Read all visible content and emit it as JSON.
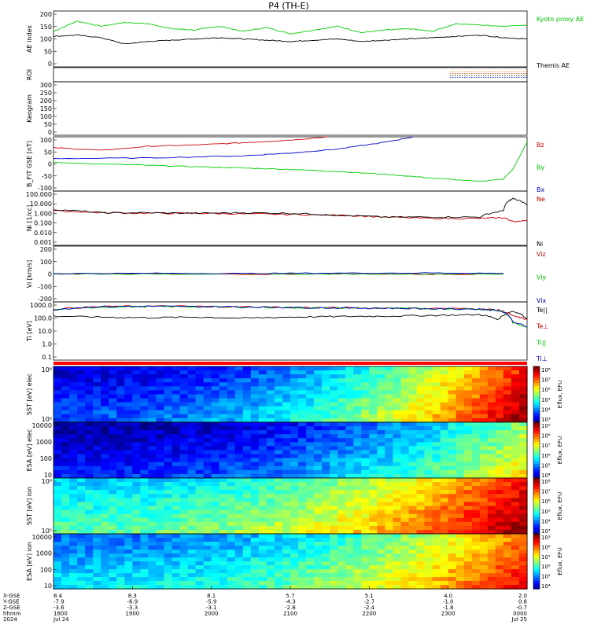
{
  "chart_data": {
    "type": "line",
    "title": "P4 (TH-E)",
    "panels": [
      {
        "id": "ae",
        "ylabel": "AE index",
        "ticks": [
          "200",
          "150",
          "100",
          "50",
          "0"
        ],
        "ylim": [
          -20,
          200
        ],
        "series": [
          {
            "name": "Kyoto proxy AE",
            "color": "#00cc00",
            "x": [
              0,
              0.05,
              0.1,
              0.15,
              0.2,
              0.25,
              0.3,
              0.35,
              0.4,
              0.45,
              0.5,
              0.55,
              0.6,
              0.65,
              0.7,
              0.75,
              0.8,
              0.85,
              0.9,
              0.95,
              1.0
            ],
            "y": [
              120,
              160,
              140,
              155,
              150,
              130,
              125,
              140,
              120,
              135,
              110,
              125,
              140,
              115,
              125,
              130,
              120,
              150,
              145,
              140,
              145
            ]
          },
          {
            "name": "Themis AE",
            "color": "#000000",
            "x": [
              0,
              0.05,
              0.1,
              0.15,
              0.2,
              0.25,
              0.3,
              0.35,
              0.4,
              0.45,
              0.5,
              0.55,
              0.6,
              0.65,
              0.7,
              0.75,
              0.8,
              0.85,
              0.9,
              0.95,
              1.0
            ],
            "y": [
              100,
              105,
              95,
              70,
              80,
              85,
              90,
              95,
              90,
              85,
              80,
              85,
              90,
              80,
              85,
              90,
              95,
              100,
              105,
              95,
              90
            ]
          }
        ]
      },
      {
        "id": "roi",
        "ylabel": "ROI",
        "ticks": [],
        "note_lines": [
          "#ff8800",
          "#ff4400",
          "#000000",
          "#0000cc"
        ]
      },
      {
        "id": "keogram",
        "ylabel": "Keogram",
        "ticks": [
          "300",
          "250",
          "200",
          "150",
          "100",
          "50",
          "0"
        ],
        "ylim": [
          0,
          300
        ]
      },
      {
        "id": "bfield",
        "ylabel": "B_FIT GSE [nT]",
        "ticks": [
          "100",
          "50",
          "0",
          "-50",
          "-100"
        ],
        "ylim": [
          -100,
          100
        ],
        "series": [
          {
            "name": "Bz",
            "color": "#cc0000",
            "x": [
              0,
              0.1,
              0.2,
              0.3,
              0.4,
              0.5,
              0.58
            ],
            "y": [
              60,
              50,
              65,
              70,
              78,
              88,
              100
            ]
          },
          {
            "name": "By",
            "color": "#00cc00",
            "x": [
              0,
              0.1,
              0.2,
              0.3,
              0.4,
              0.5,
              0.6,
              0.7,
              0.8,
              0.9,
              0.95,
              0.97,
              1.0
            ],
            "y": [
              5,
              0,
              -5,
              -10,
              -15,
              -20,
              -28,
              -38,
              -52,
              -65,
              -55,
              -20,
              80
            ]
          },
          {
            "name": "Bx",
            "color": "#0000cc",
            "x": [
              0,
              0.2,
              0.4,
              0.5,
              0.6,
              0.7,
              0.76
            ],
            "y": [
              20,
              22,
              30,
              40,
              55,
              80,
              100
            ]
          }
        ]
      },
      {
        "id": "density",
        "ylabel": "Ni [1/cc]",
        "ticks": [
          "100.000",
          "10.000",
          "1.000",
          "0.100",
          "0.010",
          "0.001"
        ],
        "log": true,
        "ylim": [
          0.001,
          100
        ],
        "series": [
          {
            "name": "Ne",
            "color": "#cc0000",
            "x": [
              0,
              0.1,
              0.2,
              0.3,
              0.4,
              0.5,
              0.6,
              0.7,
              0.8,
              0.9,
              0.95,
              0.97,
              1.0
            ],
            "y": [
              1.5,
              1.0,
              0.9,
              0.9,
              0.8,
              0.7,
              0.6,
              0.4,
              0.3,
              0.3,
              0.35,
              0.15,
              0.2
            ]
          },
          {
            "name": "Ni",
            "color": "#000000",
            "x": [
              0,
              0.1,
              0.2,
              0.3,
              0.4,
              0.5,
              0.6,
              0.7,
              0.8,
              0.9,
              0.95,
              0.97,
              1.0
            ],
            "y": [
              2,
              1.0,
              1.0,
              0.9,
              1.0,
              0.9,
              0.6,
              0.4,
              0.4,
              0.4,
              1.5,
              20,
              5
            ]
          }
        ]
      },
      {
        "id": "velocity",
        "ylabel": "Vi [km/s]",
        "ticks": [
          "200",
          "100",
          "0",
          "-100",
          "-200"
        ],
        "ylim": [
          -300,
          300
        ],
        "series": [
          {
            "name": "Viz",
            "color": "#cc0000",
            "x": [
              0,
              0.2,
              0.4,
              0.6,
              0.8,
              0.95
            ],
            "y": [
              0,
              5,
              -5,
              3,
              -3,
              0
            ]
          },
          {
            "name": "Viy",
            "color": "#00cc00",
            "x": [
              0,
              0.2,
              0.4,
              0.6,
              0.8,
              0.95
            ],
            "y": [
              2,
              0,
              2,
              0,
              2,
              0
            ]
          },
          {
            "name": "Vix",
            "color": "#0000cc",
            "x": [
              0,
              0.2,
              0.4,
              0.6,
              0.8,
              0.95
            ],
            "y": [
              5,
              8,
              6,
              10,
              12,
              8
            ]
          }
        ]
      },
      {
        "id": "temp",
        "ylabel": "Ti [eV]",
        "ticks": [
          "1000.0",
          "100.0",
          "10.0",
          "1.0",
          "0.1"
        ],
        "log": true,
        "ylim": [
          0.05,
          5000
        ],
        "series": [
          {
            "name": "Te||",
            "color": "#000000",
            "x": [
              0,
              0.1,
              0.2,
              0.3,
              0.4,
              0.5,
              0.6,
              0.7,
              0.8,
              0.9,
              0.94,
              0.97,
              1.0
            ],
            "y": [
              300,
              250,
              220,
              250,
              200,
              250,
              280,
              300,
              350,
              400,
              150,
              800,
              150
            ]
          },
          {
            "name": "Te⊥",
            "color": "#cc0000",
            "x": [
              0,
              0.1,
              0.2,
              0.3,
              0.4,
              0.5,
              0.6,
              0.7,
              0.8,
              0.9,
              0.94,
              0.97,
              1.0
            ],
            "y": [
              1200,
              2000,
              2200,
              2100,
              1900,
              1700,
              1600,
              1500,
              1400,
              1300,
              1000,
              300,
              150
            ]
          },
          {
            "name": "Ti||",
            "color": "#00cc00",
            "x": [
              0,
              0.1,
              0.2,
              0.3,
              0.4,
              0.5,
              0.6,
              0.7,
              0.8,
              0.9,
              0.94,
              0.97,
              1.0
            ],
            "y": [
              1000,
              1800,
              2000,
              1900,
              1800,
              1600,
              1500,
              1400,
              1300,
              1200,
              900,
              80,
              30
            ]
          },
          {
            "name": "Ti⊥",
            "color": "#0000cc",
            "x": [
              0,
              0.1,
              0.2,
              0.3,
              0.4,
              0.5,
              0.6,
              0.7,
              0.8,
              0.9,
              0.94,
              0.97,
              1.0
            ],
            "y": [
              1100,
              2000,
              2100,
              2000,
              1900,
              1700,
              1500,
              1450,
              1300,
              1200,
              950,
              90,
              35
            ]
          }
        ]
      },
      {
        "id": "sst-e",
        "ylabel": "SST [eV]",
        "ylabel_sub": "elec",
        "ticks": [
          "10⁶",
          "10⁵"
        ],
        "cbar_ticks": [
          "10⁸",
          "10⁷",
          "10⁶",
          "10⁵",
          "10⁴",
          "10³"
        ],
        "cbar_label": "Eflux, EFU",
        "heatmap": {
          "low": 0.15,
          "high": 0.95
        }
      },
      {
        "id": "esa-e",
        "ylabel": "ESA [eV]",
        "ylabel_sub": "elec",
        "ticks": [
          "10000",
          "1000",
          "100",
          "10"
        ],
        "cbar_ticks": [
          "10⁹",
          "10⁸",
          "10⁷",
          "10⁶",
          "10⁵",
          "10⁴"
        ],
        "cbar_label": "Eflux, EFU",
        "heatmap": {
          "low": 0.1,
          "high": 0.6
        }
      },
      {
        "id": "sst-i",
        "ylabel": "SST [eV]",
        "ylabel_sub": "ion",
        "ticks": [
          "10⁶",
          "10⁵"
        ],
        "cbar_ticks": [
          "10⁸",
          "10⁷",
          "10⁶",
          "10⁵",
          "10⁴",
          "10³"
        ],
        "cbar_label": "Eflux, EFU",
        "heatmap": {
          "low": 0.4,
          "high": 0.95
        }
      },
      {
        "id": "esa-i",
        "ylabel": "ESA [eV]",
        "ylabel_sub": "ion",
        "ticks": [
          "10000",
          "1000",
          "100",
          "10"
        ],
        "cbar_ticks": [
          "10⁹",
          "10⁸",
          "10⁷",
          "10⁶",
          "10⁵",
          "10⁴"
        ],
        "cbar_label": "Eflux, EFU",
        "heatmap": {
          "low": 0.3,
          "high": 0.85
        }
      }
    ],
    "x_axis": {
      "row_labels": [
        "X-GSE",
        "Y-GSE",
        "Z-GSE",
        "hhmm",
        "2024"
      ],
      "columns": [
        {
          "values": [
            "8.4",
            "-7.9",
            "-3.6",
            "1800",
            "Jul 24"
          ]
        },
        {
          "values": [
            "8.3",
            "-6.9",
            "-3.3",
            "1900",
            ""
          ]
        },
        {
          "values": [
            "8.1",
            "-5.9",
            "-3.1",
            "2000",
            ""
          ]
        },
        {
          "values": [
            "5.7",
            "-4.3",
            "-2.8",
            "2100",
            ""
          ]
        },
        {
          "values": [
            "5.1",
            "-2.7",
            "-2.4",
            "2200",
            ""
          ]
        },
        {
          "values": [
            "4.0",
            "-1.0",
            "-1.8",
            "2300",
            ""
          ]
        },
        {
          "values": [
            "2.0",
            "0.8",
            "-0.7",
            "0000",
            "Jul 25"
          ]
        }
      ]
    },
    "colors": {
      "red": "#cc0000",
      "green": "#00cc00",
      "blue": "#0000cc"
    }
  }
}
